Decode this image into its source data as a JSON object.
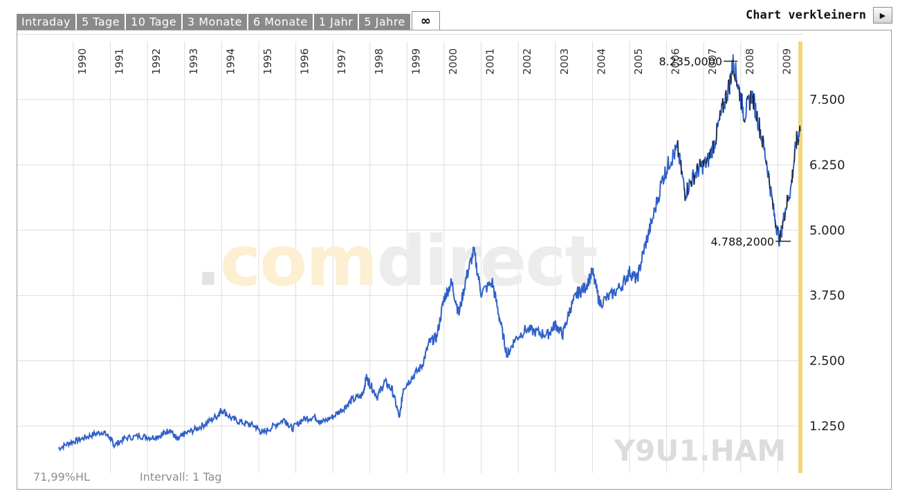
{
  "tabs": [
    {
      "label": "Intraday"
    },
    {
      "label": "5 Tage"
    },
    {
      "label": "10 Tage"
    },
    {
      "label": "3 Monate"
    },
    {
      "label": "6 Monate"
    },
    {
      "label": "1 Jahr"
    },
    {
      "label": "5 Jahre"
    },
    {
      "label": "∞",
      "active": true
    }
  ],
  "shrink": {
    "label": "Chart verkleinern",
    "icon": "play-arrow-icon"
  },
  "watermark": {
    "prefix": ".",
    "com": "com",
    "direct": "direct"
  },
  "symbol": "Y9U1.HAM",
  "footer": {
    "hl": "71,99%HL",
    "interval": "Intervall: 1 Tag"
  },
  "colors": {
    "line": "#3060c8",
    "dark": "#202020",
    "grid": "#dcdcdc",
    "now_bar": "#f2d978",
    "wm_orange": "#fcefd2",
    "wm_gray": "#ececec",
    "symbol_gray": "#dcdcdc"
  },
  "chart_data": {
    "type": "line",
    "x_label": "",
    "y_label": "",
    "years": [
      "1990",
      "1991",
      "1992",
      "1993",
      "1994",
      "1995",
      "1996",
      "1997",
      "1998",
      "1999",
      "2000",
      "2001",
      "2002",
      "2003",
      "2004",
      "2005",
      "2006",
      "2007",
      "2008",
      "2009"
    ],
    "y_ticks": [
      "7.500",
      "6.250",
      "5.000",
      "3.750",
      "2.500",
      "1.250"
    ],
    "y_tick_values": [
      7500,
      6250,
      5000,
      3750,
      2500,
      1250
    ],
    "ylim": [
      500,
      8600
    ],
    "xlim": [
      1989.5,
      2009.6
    ],
    "grid": true,
    "high_label": "8.235,0000",
    "high": {
      "x": 2007.8,
      "y": 8235
    },
    "low_label": "4.788,2000",
    "low": {
      "x": 2009.2,
      "y": 4788.2
    },
    "series": [
      {
        "values": [
          [
            1989.6,
            820
          ],
          [
            1989.9,
            930
          ],
          [
            1990.2,
            1000
          ],
          [
            1990.5,
            1080
          ],
          [
            1990.8,
            1140
          ],
          [
            1991.0,
            1020
          ],
          [
            1991.1,
            880
          ],
          [
            1991.4,
            1020
          ],
          [
            1991.8,
            1060
          ],
          [
            1992.1,
            1030
          ],
          [
            1992.4,
            1080
          ],
          [
            1992.6,
            1190
          ],
          [
            1992.8,
            980
          ],
          [
            1993.0,
            1100
          ],
          [
            1993.3,
            1190
          ],
          [
            1993.6,
            1310
          ],
          [
            1993.9,
            1460
          ],
          [
            1994.0,
            1570
          ],
          [
            1994.3,
            1380
          ],
          [
            1994.6,
            1310
          ],
          [
            1994.9,
            1250
          ],
          [
            1995.1,
            1110
          ],
          [
            1995.4,
            1250
          ],
          [
            1995.7,
            1380
          ],
          [
            1995.9,
            1200
          ],
          [
            1996.2,
            1380
          ],
          [
            1996.5,
            1430
          ],
          [
            1996.7,
            1320
          ],
          [
            1997.0,
            1430
          ],
          [
            1997.3,
            1600
          ],
          [
            1997.5,
            1740
          ],
          [
            1997.8,
            1840
          ],
          [
            1997.9,
            2180
          ],
          [
            1998.0,
            2050
          ],
          [
            1998.2,
            1810
          ],
          [
            1998.4,
            2100
          ],
          [
            1998.6,
            1940
          ],
          [
            1998.8,
            1400
          ],
          [
            1998.9,
            1980
          ],
          [
            1999.1,
            2150
          ],
          [
            1999.4,
            2400
          ],
          [
            1999.6,
            2850
          ],
          [
            1999.8,
            2950
          ],
          [
            2000.0,
            3700
          ],
          [
            2000.2,
            4000
          ],
          [
            2000.4,
            3400
          ],
          [
            2000.6,
            4100
          ],
          [
            2000.8,
            4600
          ],
          [
            2001.0,
            3800
          ],
          [
            2001.3,
            4000
          ],
          [
            2001.5,
            3300
          ],
          [
            2001.7,
            2600
          ],
          [
            2001.9,
            2900
          ],
          [
            2002.2,
            3100
          ],
          [
            2002.5,
            3050
          ],
          [
            2002.8,
            3000
          ],
          [
            2003.0,
            3200
          ],
          [
            2003.2,
            3000
          ],
          [
            2003.4,
            3500
          ],
          [
            2003.6,
            3800
          ],
          [
            2003.8,
            3900
          ],
          [
            2004.0,
            4200
          ],
          [
            2004.2,
            3600
          ],
          [
            2004.5,
            3750
          ],
          [
            2004.8,
            3950
          ],
          [
            2005.0,
            4200
          ],
          [
            2005.2,
            4050
          ],
          [
            2005.4,
            4650
          ],
          [
            2005.6,
            5150
          ],
          [
            2005.9,
            6000
          ],
          [
            2006.1,
            6350
          ],
          [
            2006.3,
            6550
          ],
          [
            2006.5,
            5700
          ],
          [
            2006.7,
            6000
          ],
          [
            2006.9,
            6200
          ],
          [
            2007.1,
            6300
          ],
          [
            2007.3,
            6700
          ],
          [
            2007.5,
            7300
          ],
          [
            2007.7,
            7800
          ],
          [
            2007.8,
            8235
          ],
          [
            2007.95,
            7700
          ],
          [
            2008.1,
            7200
          ],
          [
            2008.3,
            7600
          ],
          [
            2008.5,
            7000
          ],
          [
            2008.7,
            6300
          ],
          [
            2008.9,
            5300
          ],
          [
            2009.05,
            4788.2
          ],
          [
            2009.2,
            5400
          ],
          [
            2009.35,
            5800
          ],
          [
            2009.5,
            6700
          ],
          [
            2009.6,
            6900
          ]
        ]
      }
    ]
  }
}
